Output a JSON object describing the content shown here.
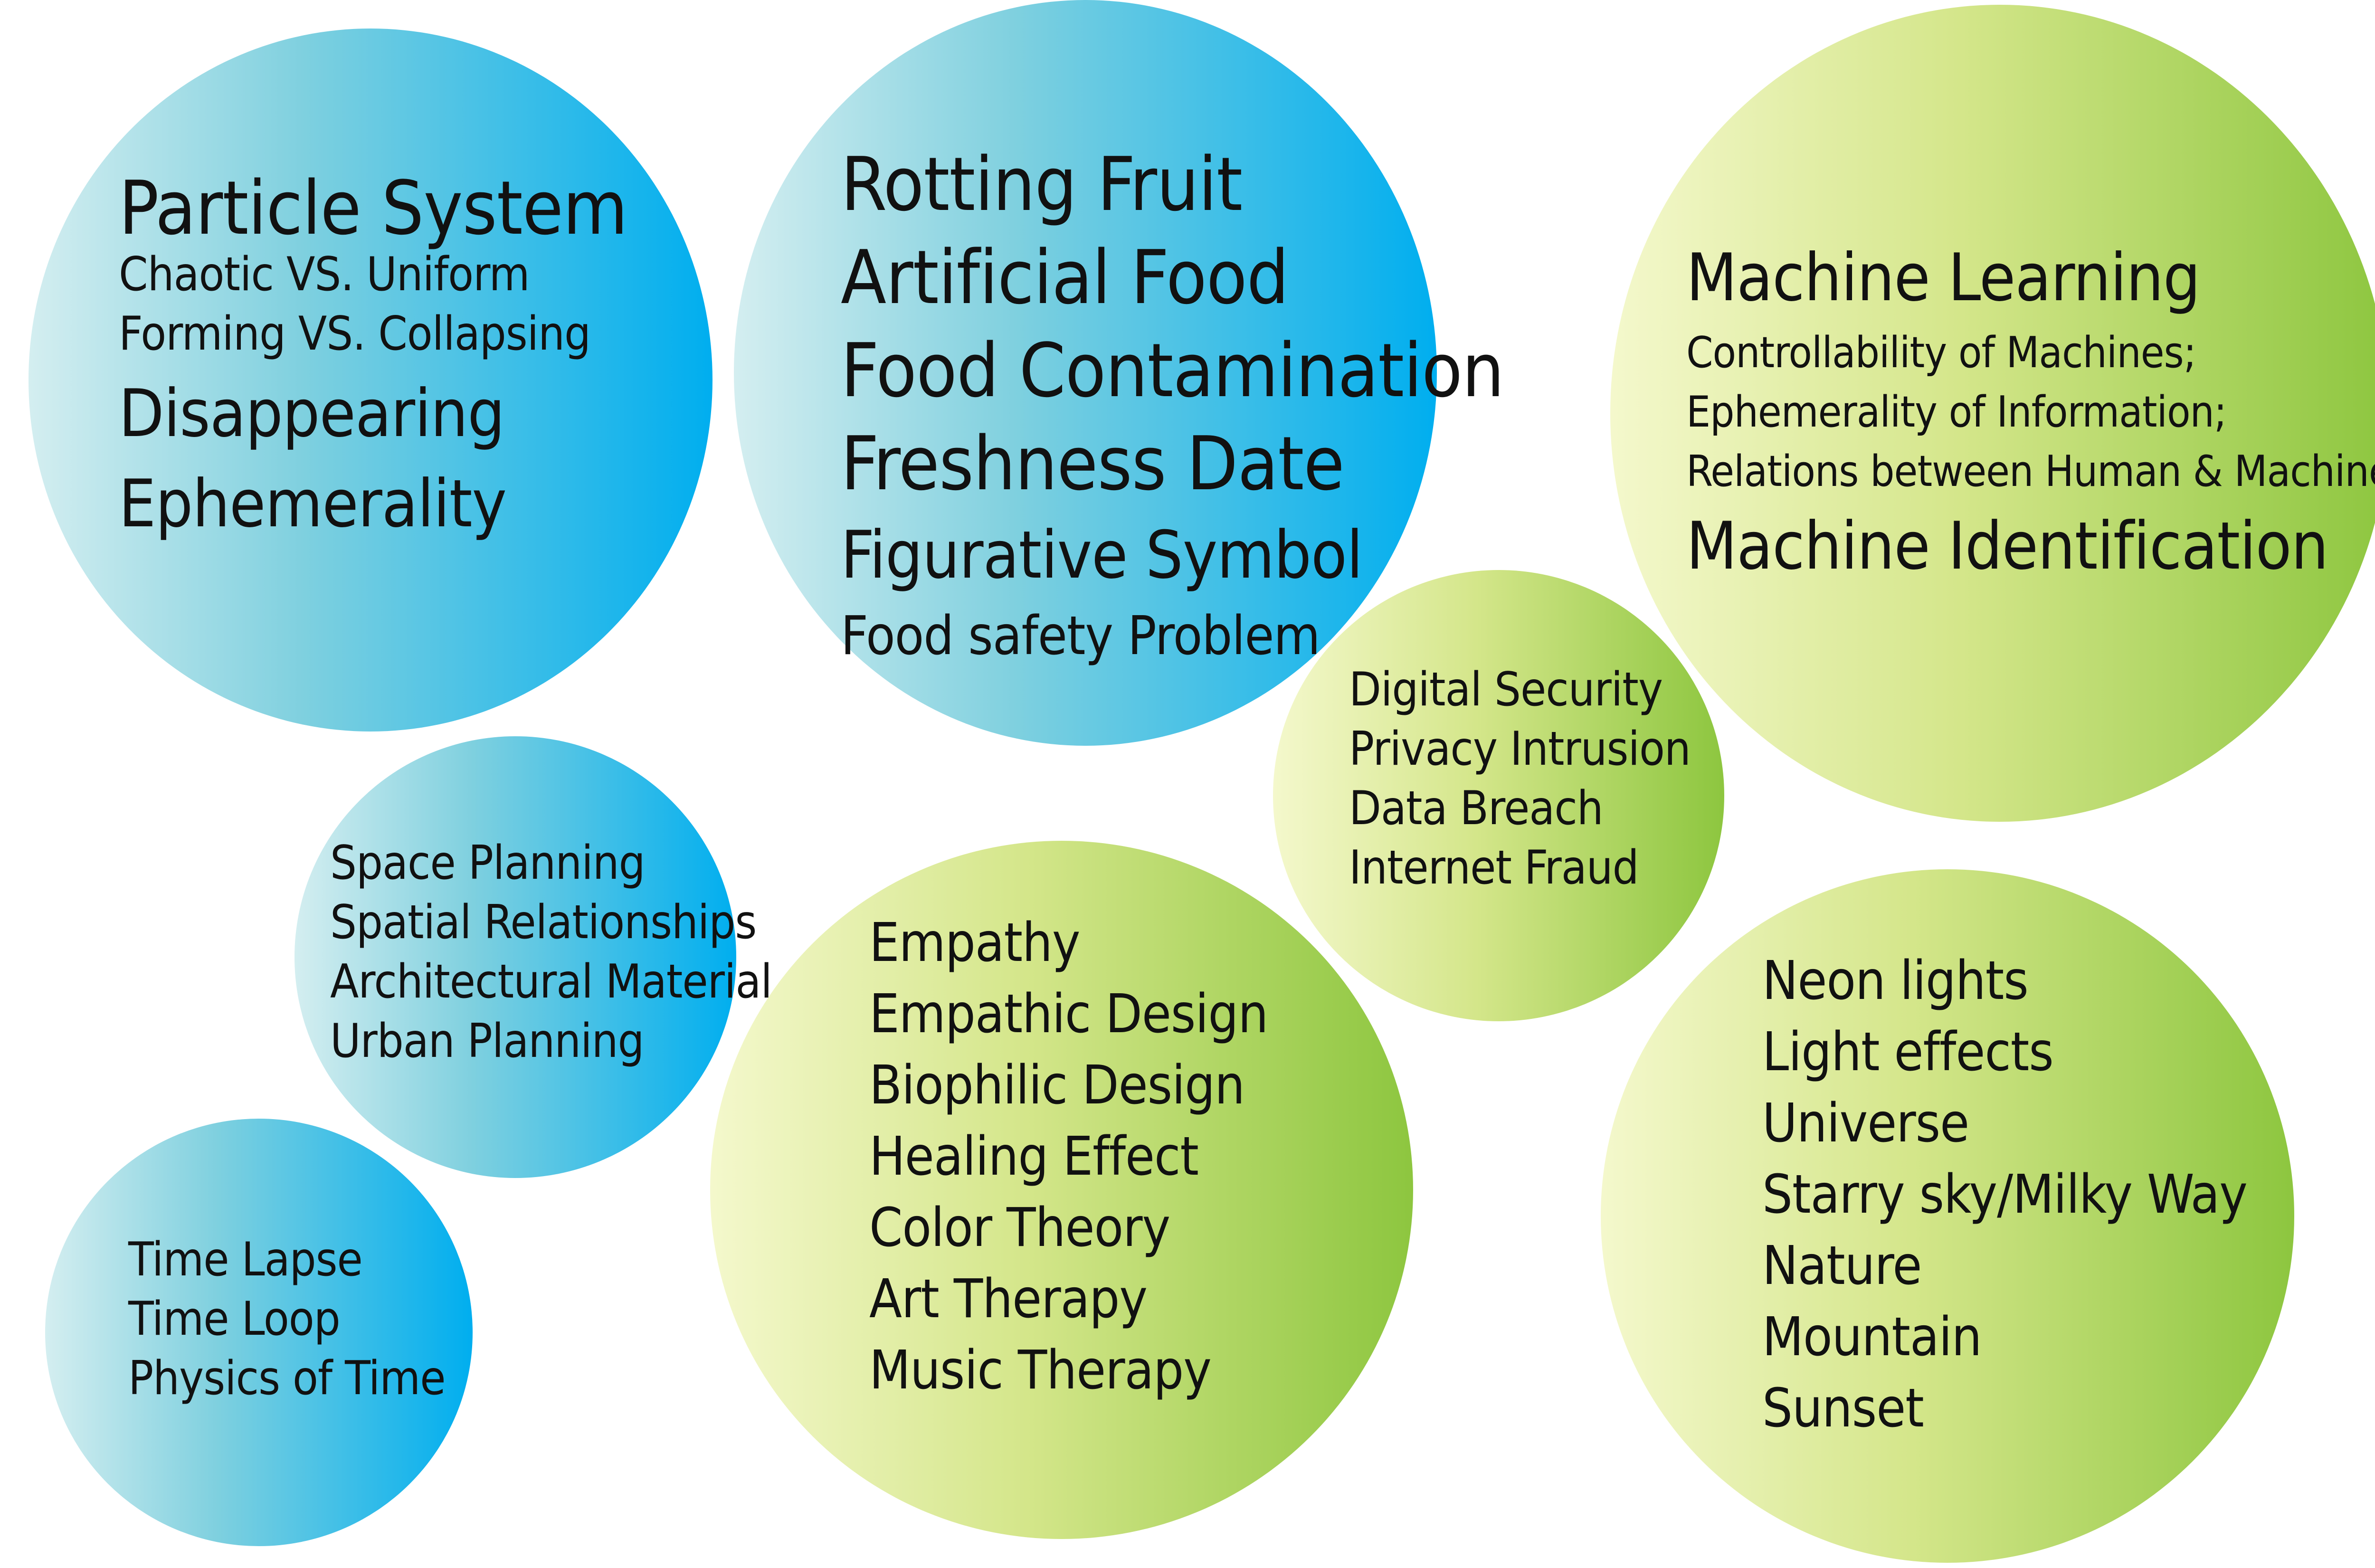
{
  "bubbles": {
    "particle": {
      "color": "blue",
      "lines": [
        "Particle System",
        "Chaotic VS. Uniform",
        "Forming VS. Collapsing",
        "Disappearing",
        "Ephemerality"
      ]
    },
    "food": {
      "color": "blue",
      "lines": [
        "Rotting Fruit",
        "Artificial Food",
        "Food Contamination",
        "Freshness Date",
        "Figurative Symbol",
        "Food safety Problem"
      ]
    },
    "machine": {
      "color": "green",
      "lines": [
        "Machine Learning",
        "Controllability of Machines;",
        "Ephemerality of Information;",
        "Relations between Human & Machines",
        "Machine Identification"
      ]
    },
    "space": {
      "color": "blue",
      "lines": [
        "Space Planning",
        "Spatial Relationships",
        "Architectural Material",
        "Urban Planning"
      ]
    },
    "digital": {
      "color": "green",
      "lines": [
        "Digital Security",
        "Privacy Intrusion",
        "Data Breach",
        "Internet Fraud"
      ]
    },
    "empathy": {
      "color": "green",
      "lines": [
        "Empathy",
        "Empathic Design",
        "Biophilic Design",
        "Healing Effect",
        "Color Theory",
        "Art Therapy",
        "Music Therapy"
      ]
    },
    "neon": {
      "color": "green",
      "lines": [
        "Neon lights",
        "Light effects",
        "Universe",
        "Starry sky/Milky Way",
        "Nature",
        "Mountain",
        "Sunset"
      ]
    },
    "time": {
      "color": "blue",
      "lines": [
        "Time Lapse",
        "Time Loop",
        "Physics of Time"
      ]
    }
  },
  "colors": {
    "blue_start": "#d4eef0",
    "blue_end": "#00aeef",
    "green_start": "#f4f8cc",
    "green_end": "#8dc63f",
    "text": "#111111"
  }
}
